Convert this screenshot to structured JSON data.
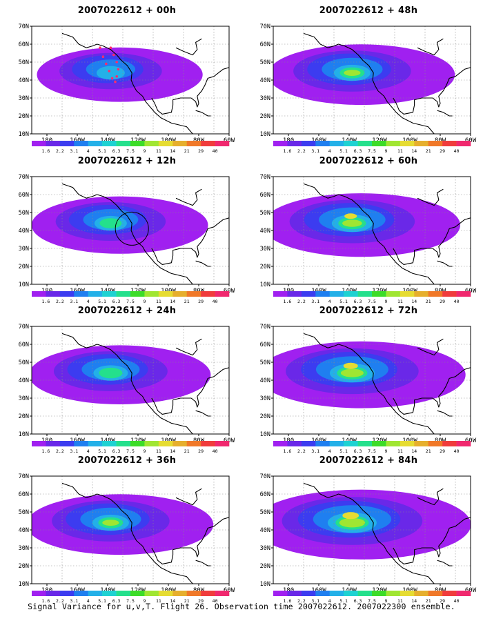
{
  "panels": [
    {
      "title": "2007022612 + 00h",
      "intensity": 0.35,
      "ring": false,
      "track": true
    },
    {
      "title": "2007022612 + 48h",
      "intensity": 0.55,
      "ring": false,
      "track": false
    },
    {
      "title": "2007022612 + 12h",
      "intensity": 0.45,
      "ring": true,
      "track": false
    },
    {
      "title": "2007022612 + 60h",
      "intensity": 0.65,
      "ring": false,
      "track": false
    },
    {
      "title": "2007022612 + 24h",
      "intensity": 0.5,
      "ring": false,
      "track": false
    },
    {
      "title": "2007022612 + 72h",
      "intensity": 0.75,
      "ring": false,
      "track": false
    },
    {
      "title": "2007022612 + 36h",
      "intensity": 0.55,
      "ring": false,
      "track": false
    },
    {
      "title": "2007022612 + 84h",
      "intensity": 0.85,
      "ring": false,
      "track": false
    }
  ],
  "axes": {
    "lat_labels": [
      "10N",
      "20N",
      "30N",
      "40N",
      "50N",
      "60N",
      "70N"
    ],
    "lon_labels": [
      "180",
      "160W",
      "140W",
      "120W",
      "100W",
      "80W",
      "60W"
    ]
  },
  "colorbar": {
    "labels": [
      "1.6",
      "2.2",
      "3.1",
      "4",
      "5.1",
      "6.3",
      "7.5",
      "9",
      "11",
      "14",
      "21",
      "29",
      "40"
    ],
    "colors": [
      "#a020f0",
      "#6a28e8",
      "#3c3cf0",
      "#1f7ff0",
      "#23b0e8",
      "#1ed2d2",
      "#24e08c",
      "#3cdc28",
      "#a0e632",
      "#e6dc32",
      "#e6af2d",
      "#f07828",
      "#f03c3c",
      "#f0286e"
    ]
  },
  "caption": "Signal Variance for u,v,T. Flight 26. Observation time 2007022612. 2007022300 ensemble."
}
